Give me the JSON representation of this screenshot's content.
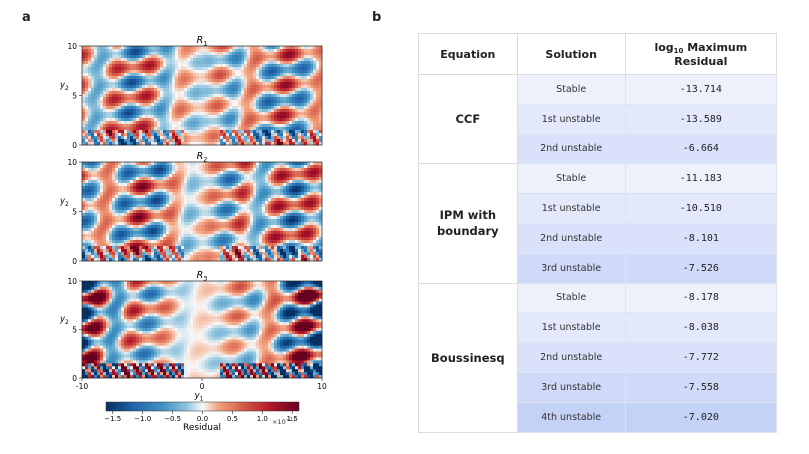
{
  "panel_a": {
    "label": "a",
    "subplots": [
      {
        "title_base": "R",
        "title_sub": "1"
      },
      {
        "title_base": "R",
        "title_sub": "2"
      },
      {
        "title_base": "R",
        "title_sub": "3"
      }
    ],
    "ylabel_base": "y",
    "ylabel_sub": "2",
    "xlabel_base": "y",
    "xlabel_sub": "1",
    "y_ticks": [
      "0",
      "5",
      "10"
    ],
    "x_ticks": [
      "-10",
      "0",
      "10"
    ],
    "colorbar": {
      "label": "Residual",
      "ticks": [
        "−1.5",
        "−1.0",
        "−0.5",
        "0.0",
        "0.5",
        "1.0",
        "1.5"
      ],
      "multiplier": "×10",
      "multiplier_exp": "−11"
    }
  },
  "panel_b": {
    "label": "b",
    "headers": {
      "equation": "Equation",
      "solution": "Solution",
      "residual_prefix": "log",
      "residual_sub": "10",
      "residual_rest": " Maximum Residual"
    }
  },
  "chart_data": [
    {
      "type": "heatmap",
      "title": "R1",
      "xlim": [
        -10,
        10
      ],
      "ylim": [
        0,
        10
      ],
      "xlabel": "y1",
      "ylabel": "y2",
      "colorbar_range": [
        -1.5e-11,
        1.5e-11
      ],
      "colorbar_label": "Residual"
    },
    {
      "type": "heatmap",
      "title": "R2",
      "xlim": [
        -10,
        10
      ],
      "ylim": [
        0,
        10
      ],
      "xlabel": "y1",
      "ylabel": "y2",
      "colorbar_range": [
        -1.5e-11,
        1.5e-11
      ],
      "colorbar_label": "Residual"
    },
    {
      "type": "heatmap",
      "title": "R3",
      "xlim": [
        -10,
        10
      ],
      "ylim": [
        0,
        10
      ],
      "xlabel": "y1",
      "ylabel": "y2",
      "colorbar_range": [
        -1.5e-11,
        1.5e-11
      ],
      "colorbar_label": "Residual"
    },
    {
      "type": "table",
      "columns": [
        "Equation",
        "Solution",
        "log10 Maximum Residual"
      ],
      "groups": [
        {
          "equation": "CCF",
          "rows": [
            {
              "solution": "Stable",
              "value": "-13.714"
            },
            {
              "solution": "1st unstable",
              "value": "-13.589"
            },
            {
              "solution": "2nd unstable",
              "value": "-6.664"
            }
          ]
        },
        {
          "equation": "IPM with boundary",
          "rows": [
            {
              "solution": "Stable",
              "value": "-11.183"
            },
            {
              "solution": "1st unstable",
              "value": "-10.510"
            },
            {
              "solution": "2nd unstable",
              "value": "-8.101"
            },
            {
              "solution": "3rd unstable",
              "value": "-7.526"
            }
          ]
        },
        {
          "equation": "Boussinesq",
          "rows": [
            {
              "solution": "Stable",
              "value": "-8.178"
            },
            {
              "solution": "1st unstable",
              "value": "-8.038"
            },
            {
              "solution": "2nd unstable",
              "value": "-7.772"
            },
            {
              "solution": "3rd unstable",
              "value": "-7.558"
            },
            {
              "solution": "4th unstable",
              "value": "-7.020"
            }
          ]
        }
      ]
    }
  ]
}
